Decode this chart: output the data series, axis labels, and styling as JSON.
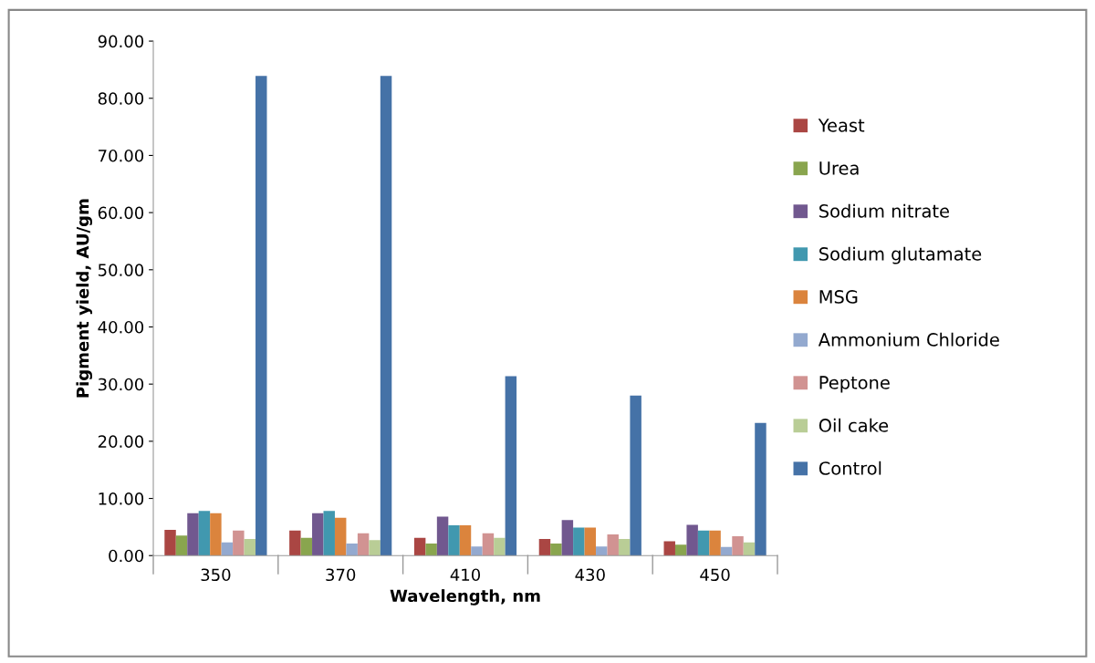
{
  "chart_data": {
    "type": "bar",
    "xlabel": "Wavelength, nm",
    "ylabel": "Pigment yield, AU/gm",
    "categories": [
      "350",
      "370",
      "410",
      "430",
      "450"
    ],
    "series": [
      {
        "name": "Yeast",
        "color": "#aa4643",
        "values": [
          4.5,
          4.4,
          3.1,
          2.9,
          2.5
        ]
      },
      {
        "name": "Urea",
        "color": "#89a54e",
        "values": [
          3.5,
          3.1,
          2.1,
          2.1,
          1.9
        ]
      },
      {
        "name": "Sodium nitrate",
        "color": "#71588f",
        "values": [
          7.4,
          7.4,
          6.8,
          6.2,
          5.4
        ]
      },
      {
        "name": "Sodium glutamate",
        "color": "#4198af",
        "values": [
          7.8,
          7.8,
          5.3,
          4.9,
          4.4
        ]
      },
      {
        "name": "MSG",
        "color": "#db843d",
        "values": [
          7.4,
          6.6,
          5.3,
          4.9,
          4.4
        ]
      },
      {
        "name": "Ammonium Chloride",
        "color": "#93a9cf",
        "values": [
          2.3,
          2.1,
          1.6,
          1.6,
          1.5
        ]
      },
      {
        "name": "Peptone",
        "color": "#d19392",
        "values": [
          4.4,
          3.9,
          3.9,
          3.7,
          3.4
        ]
      },
      {
        "name": "Oil cake",
        "color": "#b9cd96",
        "values": [
          2.9,
          2.7,
          3.1,
          2.9,
          2.3
        ]
      },
      {
        "name": "Control",
        "color": "#4572a7",
        "values": [
          83.9,
          83.9,
          31.4,
          28.0,
          23.2
        ]
      }
    ],
    "ylim": [
      0,
      90
    ],
    "yticks": [
      {
        "value": 0,
        "label": "0.00"
      },
      {
        "value": 10,
        "label": "10.00"
      },
      {
        "value": 20,
        "label": "20.00"
      },
      {
        "value": 30,
        "label": "30.00"
      },
      {
        "value": 40,
        "label": "40.00"
      },
      {
        "value": 50,
        "label": "50.00"
      },
      {
        "value": 60,
        "label": "60.00"
      },
      {
        "value": 70,
        "label": "70.00"
      },
      {
        "value": 80,
        "label": "80.00"
      },
      {
        "value": 90,
        "label": "90.00"
      }
    ],
    "grid": false,
    "legend": "right"
  }
}
